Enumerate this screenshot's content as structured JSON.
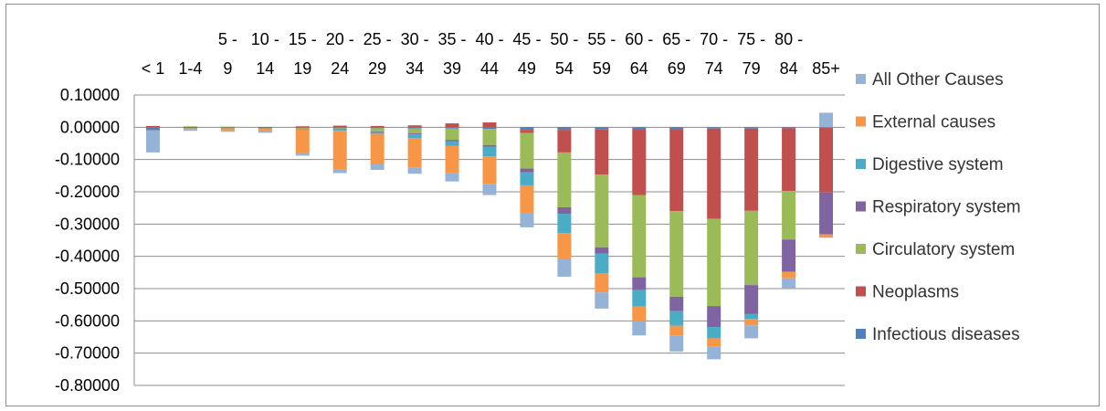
{
  "chart_data": {
    "type": "bar",
    "stacked": true,
    "categories": [
      "< 1",
      "1-4",
      "5 - 9",
      "10 - 14",
      "15 - 19",
      "20 - 24",
      "25 - 29",
      "30 - 34",
      "35 - 39",
      "40 - 44",
      "45 - 49",
      "50 - 54",
      "55 - 59",
      "60 - 64",
      "65 - 69",
      "70 - 74",
      "75 - 79",
      "80 - 84",
      "85+"
    ],
    "x_tick_lines": [
      [
        "",
        "< 1"
      ],
      [
        "",
        "1-4"
      ],
      [
        "5 -",
        "9"
      ],
      [
        "10 -",
        "14"
      ],
      [
        "15 -",
        "19"
      ],
      [
        "20 -",
        "24"
      ],
      [
        "25 -",
        "29"
      ],
      [
        "30 -",
        "34"
      ],
      [
        "35 -",
        "39"
      ],
      [
        "40 -",
        "44"
      ],
      [
        "45 -",
        "49"
      ],
      [
        "50 -",
        "54"
      ],
      [
        "55 -",
        "59"
      ],
      [
        "60 -",
        "64"
      ],
      [
        "65 -",
        "69"
      ],
      [
        "70 -",
        "74"
      ],
      [
        "75 -",
        "79"
      ],
      [
        "80 -",
        "84"
      ],
      [
        "",
        "85+"
      ]
    ],
    "ylim": [
      -0.8,
      0.1
    ],
    "y_ticks": [
      0.1,
      0.0,
      -0.1,
      -0.2,
      -0.3,
      -0.4,
      -0.5,
      -0.6,
      -0.7,
      -0.8
    ],
    "y_tick_labels": [
      "0.10000",
      "0.00000",
      "-0.10000",
      "-0.20000",
      "-0.30000",
      "-0.40000",
      "-0.50000",
      "-0.60000",
      "-0.70000",
      "-0.80000"
    ],
    "grid": true,
    "legend_position": "right",
    "series": [
      {
        "name": "Infectious diseases",
        "color": "#4f81bd",
        "values": [
          -0.008,
          -0.001,
          -0.001,
          -0.001,
          -0.002,
          -0.003,
          -0.003,
          -0.004,
          -0.004,
          -0.005,
          -0.008,
          -0.008,
          -0.007,
          -0.005,
          -0.005,
          -0.004,
          -0.004,
          -0.003,
          -0.002
        ]
      },
      {
        "name": "Neoplasms",
        "color": "#c0504d",
        "values": [
          0.004,
          0.002,
          0.001,
          0.001,
          0.003,
          0.005,
          0.004,
          0.006,
          0.012,
          0.015,
          -0.01,
          -0.07,
          -0.14,
          -0.205,
          -0.255,
          -0.28,
          -0.255,
          -0.195,
          -0.2
        ]
      },
      {
        "name": "Circulatory system",
        "color": "#9bbb59",
        "values": [
          0.0,
          0.001,
          0.001,
          0.0,
          -0.002,
          -0.003,
          -0.01,
          -0.015,
          -0.035,
          -0.05,
          -0.11,
          -0.17,
          -0.225,
          -0.255,
          -0.265,
          -0.27,
          -0.23,
          -0.15,
          0.0
        ]
      },
      {
        "name": "Respiratory system",
        "color": "#8064a2",
        "values": [
          -0.001,
          -0.001,
          -0.001,
          -0.001,
          -0.001,
          -0.002,
          -0.002,
          -0.003,
          -0.004,
          -0.005,
          -0.012,
          -0.02,
          -0.02,
          -0.04,
          -0.045,
          -0.065,
          -0.09,
          -0.1,
          -0.13
        ]
      },
      {
        "name": "Digestive system",
        "color": "#4bacc6",
        "values": [
          -0.001,
          -0.001,
          -0.001,
          -0.001,
          -0.001,
          -0.003,
          -0.005,
          -0.012,
          -0.015,
          -0.03,
          -0.04,
          -0.06,
          -0.06,
          -0.05,
          -0.045,
          -0.035,
          -0.015,
          0.0,
          0.0
        ]
      },
      {
        "name": "External causes",
        "color": "#f79646",
        "values": [
          -0.003,
          -0.004,
          -0.007,
          -0.01,
          -0.075,
          -0.12,
          -0.095,
          -0.09,
          -0.085,
          -0.085,
          -0.085,
          -0.08,
          -0.06,
          -0.045,
          -0.03,
          -0.025,
          -0.02,
          -0.02,
          -0.01
        ]
      },
      {
        "name": "All Other Causes",
        "color": "#95b3d7",
        "values": [
          -0.065,
          -0.004,
          -0.004,
          -0.004,
          -0.007,
          -0.011,
          -0.017,
          -0.02,
          -0.025,
          -0.035,
          -0.045,
          -0.055,
          -0.05,
          -0.045,
          -0.05,
          -0.04,
          -0.04,
          -0.03,
          0.045
        ]
      }
    ],
    "legend_order": [
      "All Other Causes",
      "External causes",
      "Digestive system",
      "Respiratory system",
      "Circulatory system",
      "Neoplasms",
      "Infectious diseases"
    ]
  }
}
